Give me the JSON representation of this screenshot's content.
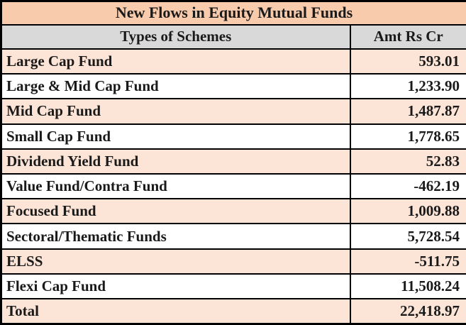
{
  "title": "New Flows in Equity Mutual Funds",
  "columns": {
    "scheme": "Types of Schemes",
    "amount": "Amt Rs Cr"
  },
  "rows": [
    {
      "scheme": "Large Cap Fund",
      "amount": "593.01"
    },
    {
      "scheme": "Large & Mid Cap Fund",
      "amount": "1,233.90"
    },
    {
      "scheme": "Mid Cap Fund",
      "amount": "1,487.87"
    },
    {
      "scheme": "Small Cap Fund",
      "amount": "1,778.65"
    },
    {
      "scheme": "Dividend Yield Fund",
      "amount": "52.83"
    },
    {
      "scheme": "Value Fund/Contra Fund",
      "amount": "-462.19"
    },
    {
      "scheme": "Focused Fund",
      "amount": "1,009.88"
    },
    {
      "scheme": "Sectoral/Thematic Funds",
      "amount": "5,728.54"
    },
    {
      "scheme": "ELSS",
      "amount": "-511.75"
    },
    {
      "scheme": "Flexi Cap Fund",
      "amount": "11,508.24"
    },
    {
      "scheme": "Total",
      "amount": "22,418.97"
    }
  ],
  "colors": {
    "title_bg": "#f8cbad",
    "header_bg": "#d9d9d9",
    "row_alt_bg": "#fce4d6",
    "row_bg": "#ffffff",
    "border": "#000000",
    "text": "#1a1a1a"
  },
  "chart_data": {
    "type": "table",
    "title": "New Flows in Equity Mutual Funds",
    "columns": [
      "Types of Schemes",
      "Amt Rs Cr"
    ],
    "categories": [
      "Large Cap Fund",
      "Large & Mid Cap Fund",
      "Mid Cap Fund",
      "Small Cap Fund",
      "Dividend Yield Fund",
      "Value Fund/Contra Fund",
      "Focused Fund",
      "Sectoral/Thematic Funds",
      "ELSS",
      "Flexi Cap Fund"
    ],
    "values": [
      593.01,
      1233.9,
      1487.87,
      1778.65,
      52.83,
      -462.19,
      1009.88,
      5728.54,
      -511.75,
      11508.24
    ],
    "total": 22418.97,
    "unit": "Rs Cr"
  }
}
